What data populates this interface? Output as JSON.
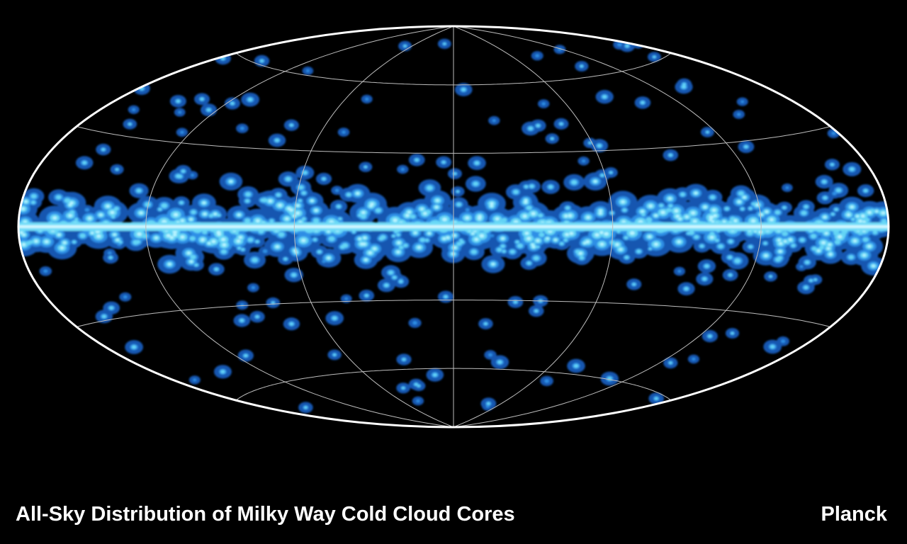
{
  "caption": {
    "title": "All-Sky Distribution of Milky Way Cold Cloud Cores",
    "credit": "Planck"
  }
}
